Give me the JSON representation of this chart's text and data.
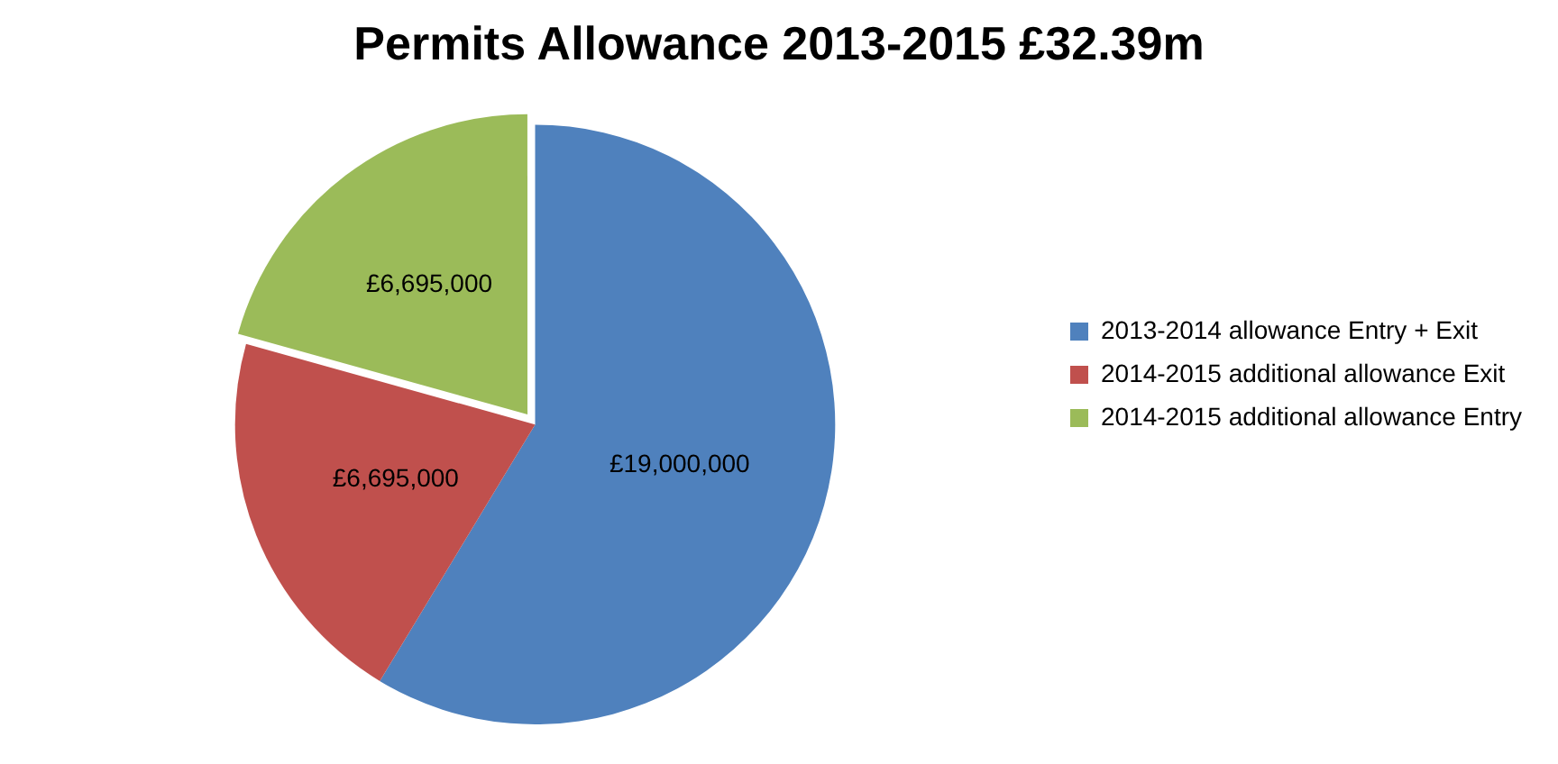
{
  "chart_data": {
    "type": "pie",
    "title": "Permits Allowance 2013-2015 £32.39m",
    "categories": [
      "2013-2014 allowance Entry + Exit",
      "2014-2015 additional allowance Exit",
      "2014-2015 additional allowance Entry"
    ],
    "values": [
      19000000,
      6695000,
      6695000
    ],
    "colors": [
      "#4f81bd",
      "#c0504d",
      "#9bbb59"
    ],
    "value_labels": [
      "£19,000,000",
      "£6,695,000",
      "£6,695,000"
    ],
    "legend": "right"
  }
}
